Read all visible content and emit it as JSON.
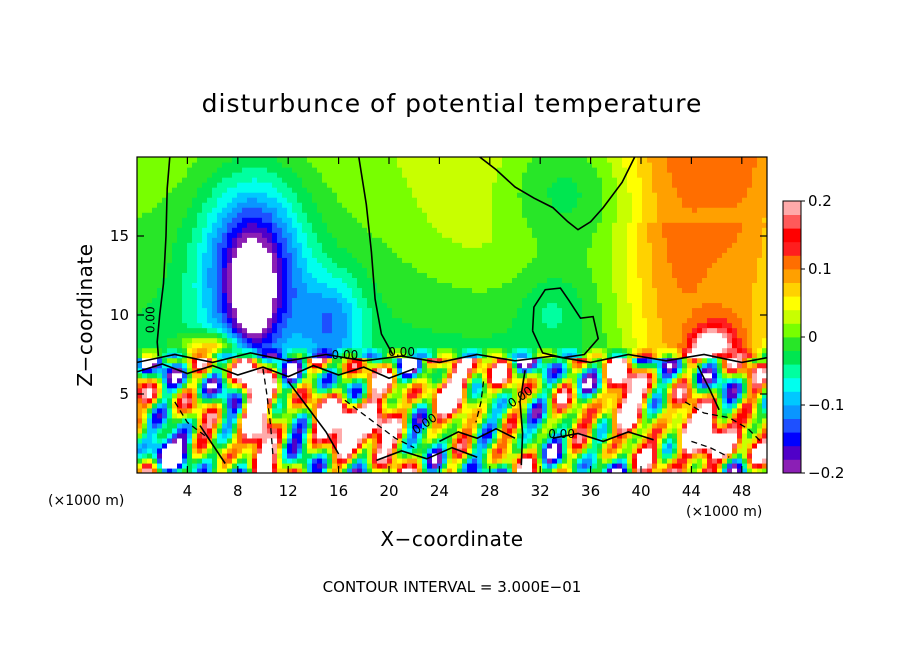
{
  "chart_data": {
    "type": "heatmap",
    "title": "disturbunce of potential temperature",
    "xlabel": "X−coordinate",
    "ylabel": "Z−coordinate",
    "x_unit": "(×1000 m)",
    "z_unit": "(×1000 m)",
    "xlim": [
      0,
      50
    ],
    "ylim": [
      0,
      20
    ],
    "x_ticks": [
      4,
      8,
      12,
      16,
      20,
      24,
      28,
      32,
      36,
      40,
      44,
      48
    ],
    "y_ticks": [
      5,
      10,
      15
    ],
    "colorbar": {
      "min": -0.2,
      "max": 0.2,
      "tick_values": [
        0.2,
        0.1,
        0,
        -0.1,
        -0.2
      ],
      "tick_labels": [
        "0.2",
        "0.1",
        "0",
        "−0.1",
        "−0.2"
      ],
      "colors": [
        "#8b1fb5",
        "#5000c8",
        "#0000ff",
        "#1e50ff",
        "#0a96ff",
        "#00c8ff",
        "#00ffee",
        "#00ffa0",
        "#00e650",
        "#28e628",
        "#78ff00",
        "#c8ff00",
        "#ffff00",
        "#ffd200",
        "#ffa000",
        "#ff6e00",
        "#ff1e1e",
        "#ff0000",
        "#ff5a5a",
        "#ffaaaa"
      ]
    },
    "contour_labels": [
      "0.00",
      "0.00",
      "0.00",
      "0.00",
      "0.00",
      "0.00"
    ],
    "contour_interval_text": "CONTOUR INTERVAL = 3.000E−01"
  }
}
